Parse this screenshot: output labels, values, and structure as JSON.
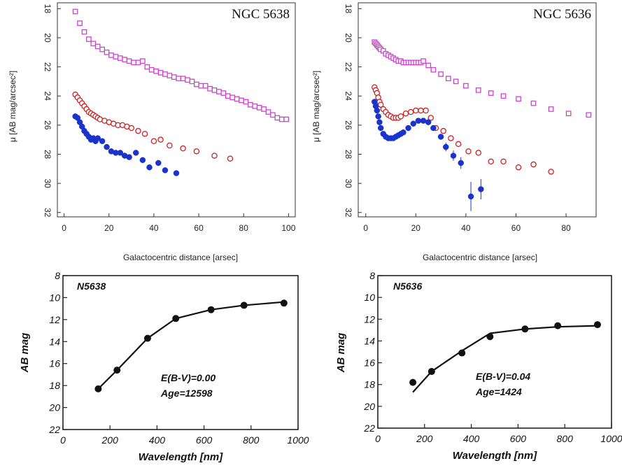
{
  "chart_data": [
    {
      "type": "scatter",
      "title": "NGC 5638",
      "xlabel": "Galactocentric distance [arsec]",
      "ylabel": "μ [AB mag/arcsec²]",
      "xlim": [
        -3,
        103
      ],
      "ylim": [
        17.6,
        32.3
      ],
      "y_inverted": true,
      "xticks": [
        0,
        20,
        40,
        60,
        80,
        100
      ],
      "yticks": [
        18,
        20,
        22,
        24,
        26,
        28,
        30,
        32
      ],
      "series": [
        {
          "marker": "square",
          "color": "#cc44cc",
          "x": [
            5,
            7,
            9,
            11,
            13,
            15,
            17,
            19,
            21,
            23,
            25,
            27,
            29,
            31,
            33,
            35,
            37,
            39,
            41,
            43,
            45,
            47,
            49,
            51,
            53,
            55,
            57,
            59,
            61,
            63,
            65,
            67,
            69,
            71,
            73,
            75,
            77,
            79,
            81,
            83,
            85,
            87,
            89,
            91,
            93,
            95,
            97,
            99
          ],
          "y": [
            18.2,
            19.0,
            19.6,
            20.1,
            20.4,
            20.6,
            20.8,
            21.0,
            21.2,
            21.3,
            21.4,
            21.5,
            21.6,
            21.7,
            21.7,
            21.6,
            22.0,
            22.2,
            22.3,
            22.4,
            22.5,
            22.6,
            22.7,
            22.8,
            22.8,
            22.9,
            23.0,
            23.2,
            23.3,
            23.3,
            23.5,
            23.6,
            23.7,
            23.8,
            24.0,
            24.1,
            24.2,
            24.3,
            24.4,
            24.6,
            24.7,
            24.8,
            24.9,
            25.1,
            25.3,
            25.5,
            25.6,
            25.6
          ]
        },
        {
          "marker": "open-circle",
          "color": "#cc2222",
          "x": [
            5,
            6,
            7,
            8,
            9,
            10,
            11,
            12,
            13,
            14,
            15,
            16,
            18,
            20,
            22,
            24,
            26,
            28,
            30,
            33,
            36,
            40,
            43,
            47,
            53,
            59,
            67,
            74
          ],
          "y": [
            23.9,
            24.1,
            24.3,
            24.5,
            24.7,
            24.9,
            25.1,
            25.2,
            25.3,
            25.4,
            25.5,
            25.6,
            25.7,
            25.8,
            25.9,
            26.0,
            26.0,
            26.1,
            26.2,
            26.4,
            26.6,
            27.1,
            27.0,
            27.4,
            27.6,
            27.8,
            28.1,
            28.3
          ],
          "error": 0.12
        },
        {
          "marker": "filled-circle",
          "color": "#1a33cc",
          "x": [
            5,
            6,
            7,
            8,
            9,
            10,
            11,
            12,
            13,
            14,
            15,
            17,
            19,
            21,
            23,
            25,
            27,
            29,
            32,
            35,
            38,
            42,
            45,
            50
          ],
          "y": [
            25.4,
            25.5,
            25.8,
            26.1,
            26.4,
            26.6,
            26.8,
            27.0,
            26.9,
            27.1,
            26.9,
            27.1,
            27.5,
            27.8,
            27.9,
            27.9,
            28.1,
            28.2,
            27.9,
            28.4,
            28.9,
            28.6,
            29.1,
            29.3
          ]
        }
      ]
    },
    {
      "type": "scatter",
      "title": "NGC 5636",
      "xlabel": "Galactocentric distance [arsec]",
      "ylabel": "μ [AB mag/arcsec²]",
      "xlim": [
        -3,
        92
      ],
      "ylim": [
        17.6,
        32.3
      ],
      "y_inverted": true,
      "xticks": [
        0,
        20,
        40,
        60,
        80
      ],
      "yticks": [
        18,
        20,
        22,
        24,
        26,
        28,
        30,
        32
      ],
      "series": [
        {
          "marker": "square",
          "color": "#cc44cc",
          "x": [
            3.5,
            4,
            4.5,
            5,
            5.5,
            6,
            7,
            8,
            9,
            10,
            11,
            12,
            13,
            14,
            15,
            16,
            17,
            18,
            19,
            20,
            21,
            22,
            23,
            25,
            27,
            30,
            33,
            36,
            40,
            45,
            50,
            55,
            61,
            67,
            74,
            81,
            89
          ],
          "y": [
            20.3,
            20.4,
            20.5,
            20.6,
            20.7,
            20.8,
            20.9,
            21.1,
            21.2,
            21.3,
            21.4,
            21.5,
            21.6,
            21.6,
            21.7,
            21.7,
            21.7,
            21.7,
            21.7,
            21.7,
            21.7,
            21.7,
            21.6,
            21.9,
            22.2,
            22.5,
            22.8,
            23.0,
            23.3,
            23.6,
            23.8,
            24.0,
            24.2,
            24.5,
            24.9,
            25.2,
            25.3
          ]
        },
        {
          "marker": "open-circle",
          "color": "#cc2222",
          "x": [
            3.5,
            4,
            4.5,
            5,
            5.5,
            6,
            7,
            8,
            9,
            10,
            11,
            12,
            13,
            14,
            16,
            18,
            20,
            22,
            24,
            26,
            28,
            31,
            34,
            37,
            41,
            45,
            50,
            55,
            61,
            67,
            74
          ],
          "y": [
            23.4,
            23.6,
            23.8,
            24.1,
            24.4,
            24.6,
            24.9,
            25.1,
            25.3,
            25.4,
            25.5,
            25.5,
            25.5,
            25.4,
            25.2,
            25.1,
            25.0,
            25.0,
            25.0,
            25.5,
            26.2,
            26.4,
            26.9,
            27.3,
            27.8,
            27.9,
            28.5,
            28.5,
            28.9,
            28.7,
            29.2
          ],
          "error": 0.15
        },
        {
          "marker": "filled-circle",
          "color": "#1a33cc",
          "x": [
            3.5,
            4,
            4.5,
            5,
            5.5,
            6,
            7,
            8,
            9,
            10,
            11,
            12,
            13,
            14,
            15,
            17,
            19,
            21,
            23,
            25,
            27,
            30,
            32,
            35,
            38,
            42,
            46
          ],
          "y": [
            24.4,
            24.7,
            25.0,
            25.4,
            25.8,
            26.2,
            26.6,
            26.8,
            26.9,
            26.9,
            26.9,
            26.8,
            26.7,
            26.6,
            26.5,
            26.2,
            25.9,
            25.7,
            25.7,
            25.8,
            26.2,
            26.8,
            27.5,
            28.1,
            28.6,
            30.9,
            30.4
          ],
          "errors": [
            0.1,
            0.1,
            0.1,
            0.1,
            0.1,
            0.1,
            0.1,
            0.1,
            0.1,
            0.1,
            0.1,
            0.1,
            0.1,
            0.1,
            0.1,
            0.1,
            0.1,
            0.1,
            0.1,
            0.1,
            0.15,
            0.2,
            0.3,
            0.35,
            0.4,
            1.0,
            0.7
          ]
        }
      ]
    },
    {
      "type": "line",
      "label": "N5638",
      "xlabel": "Wavelength [nm]",
      "ylabel": "AB mag",
      "xlim": [
        0,
        1000
      ],
      "ylim": [
        8,
        22
      ],
      "y_inverted": true,
      "xticks": [
        0,
        200,
        400,
        600,
        800,
        1000
      ],
      "yticks": [
        8,
        10,
        12,
        14,
        16,
        18,
        20,
        22
      ],
      "annotations": [
        "E(B-V)=0.00",
        "Age=12598"
      ],
      "points": {
        "x": [
          150,
          230,
          360,
          480,
          630,
          770,
          940
        ],
        "y": [
          18.3,
          16.6,
          13.7,
          11.9,
          11.1,
          10.7,
          10.5
        ]
      },
      "model": {
        "x": [
          150,
          230,
          360,
          480,
          630,
          770,
          940
        ],
        "y": [
          18.3,
          16.6,
          13.7,
          11.9,
          11.1,
          10.7,
          10.4
        ]
      }
    },
    {
      "type": "line",
      "label": "N5636",
      "xlabel": "Wavelength [nm]",
      "ylabel": "AB mag",
      "xlim": [
        0,
        1000
      ],
      "ylim": [
        8,
        22
      ],
      "y_inverted": true,
      "xticks": [
        0,
        200,
        400,
        600,
        800,
        1000
      ],
      "yticks": [
        8,
        10,
        12,
        14,
        16,
        18,
        20,
        22
      ],
      "annotations": [
        "E(B-V)=0.04",
        "Age=1424"
      ],
      "points": {
        "x": [
          150,
          230,
          360,
          480,
          630,
          770,
          940
        ],
        "y": [
          17.8,
          16.8,
          15.1,
          13.6,
          12.9,
          12.6,
          12.5
        ]
      },
      "model": {
        "x": [
          150,
          230,
          360,
          480,
          630,
          770,
          940
        ],
        "y": [
          18.7,
          16.8,
          14.9,
          13.3,
          12.9,
          12.7,
          12.6
        ]
      }
    }
  ]
}
